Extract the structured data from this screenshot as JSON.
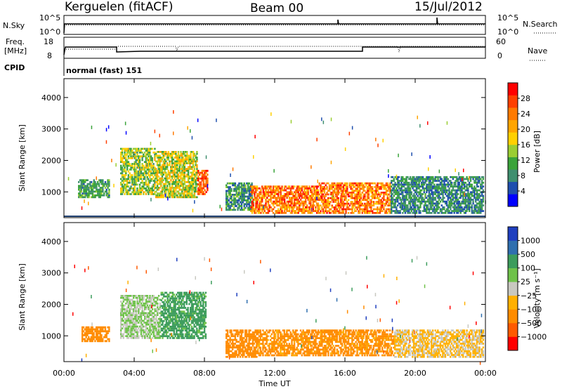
{
  "header": {
    "station": "Kerguelen (fitACF)",
    "beam": "Beam 00",
    "date": "15/Jul/2012"
  },
  "noise_panel": {
    "left_label": "N.Sky",
    "left_ticks": [
      "10^5",
      "10^0"
    ],
    "right_label": "N.Search",
    "right_ticks": [
      "10^5",
      "10^0"
    ]
  },
  "freq_panel": {
    "left_label_line1": "Freq.",
    "left_label_line2": "[MHz]",
    "left_ticks": [
      "18",
      "8"
    ],
    "right_label": "Nave",
    "right_ticks": [
      "60",
      "0"
    ],
    "cpid_label": "CPID",
    "cpid_text": "normal (fast) 151"
  },
  "time_axis": {
    "label": "Time UT",
    "ticks": [
      "00:00",
      "04:00",
      "08:00",
      "12:00",
      "16:00",
      "20:00",
      "00:00"
    ],
    "range_hours": [
      0,
      24
    ]
  },
  "colors": {
    "power_scale": [
      "#0000ff",
      "#1f4fae",
      "#3f8f6f",
      "#3aa33a",
      "#9acd32",
      "#ffd000",
      "#ffa500",
      "#ff7a00",
      "#ff4000",
      "#ff0000"
    ],
    "velocity_scale": [
      "#1f3fbf",
      "#2f6faf",
      "#3c9c5c",
      "#6fc24a",
      "#c8c8c0",
      "#ffb000",
      "#ff8c00",
      "#ff5a00",
      "#ff0000"
    ]
  },
  "chart_data": [
    {
      "type": "heatmap",
      "name": "power-panel",
      "ylabel": "Slant Range [km]",
      "ylim": [
        180,
        4600
      ],
      "yticks": [
        "1000",
        "2000",
        "3000",
        "4000"
      ],
      "colorbar_label": "Power [dB]",
      "colorbar_ticks": [
        "4",
        "8",
        "12",
        "16",
        "20",
        "24",
        "28"
      ],
      "colorbar_range": [
        0,
        32
      ],
      "regions": [
        {
          "t0": 0.8,
          "t1": 2.6,
          "r0": 800,
          "r1": 1400,
          "v0": 6,
          "v1": 14
        },
        {
          "t0": 3.2,
          "t1": 5.2,
          "r0": 900,
          "r1": 2400,
          "v0": 8,
          "v1": 20
        },
        {
          "t0": 5.2,
          "t1": 7.6,
          "r0": 800,
          "r1": 2300,
          "v0": 10,
          "v1": 22
        },
        {
          "t0": 7.6,
          "t1": 8.2,
          "r0": 900,
          "r1": 1700,
          "v0": 22,
          "v1": 30
        },
        {
          "t0": 9.2,
          "t1": 10.8,
          "r0": 400,
          "r1": 1300,
          "v0": 4,
          "v1": 14
        },
        {
          "t0": 10.6,
          "t1": 14.5,
          "r0": 300,
          "r1": 1200,
          "v0": 18,
          "v1": 30
        },
        {
          "t0": 14.5,
          "t1": 18.6,
          "r0": 300,
          "r1": 1300,
          "v0": 18,
          "v1": 30
        },
        {
          "t0": 18.6,
          "t1": 23.9,
          "r0": 300,
          "r1": 1500,
          "v0": 4,
          "v1": 12
        }
      ]
    },
    {
      "type": "heatmap",
      "name": "velocity-panel",
      "ylabel": "Slant Range [km]",
      "ylim": [
        180,
        4600
      ],
      "yticks": [
        "1000",
        "2000",
        "3000",
        "4000"
      ],
      "colorbar_label": "Velocity [m s⁻¹]",
      "colorbar_ticks": [
        "1000",
        "500",
        "100",
        "25",
        "−25",
        "−100",
        "−500",
        "−1000"
      ],
      "regions": [
        {
          "t0": 1.0,
          "t1": 2.6,
          "r0": 800,
          "r1": 1300,
          "v0": -500,
          "v1": -100
        },
        {
          "t0": 3.2,
          "t1": 5.5,
          "r0": 900,
          "r1": 2300,
          "v0": -25,
          "v1": 100
        },
        {
          "t0": 5.5,
          "t1": 8.1,
          "r0": 900,
          "r1": 2400,
          "v0": 25,
          "v1": 500
        },
        {
          "t0": 9.2,
          "t1": 11.0,
          "r0": 300,
          "r1": 1200,
          "v0": -500,
          "v1": -100
        },
        {
          "t0": 11.0,
          "t1": 18.8,
          "r0": 350,
          "r1": 1200,
          "v0": -500,
          "v1": -25
        },
        {
          "t0": 18.8,
          "t1": 23.9,
          "r0": 300,
          "r1": 1200,
          "v0": -100,
          "v1": 25
        }
      ]
    }
  ]
}
